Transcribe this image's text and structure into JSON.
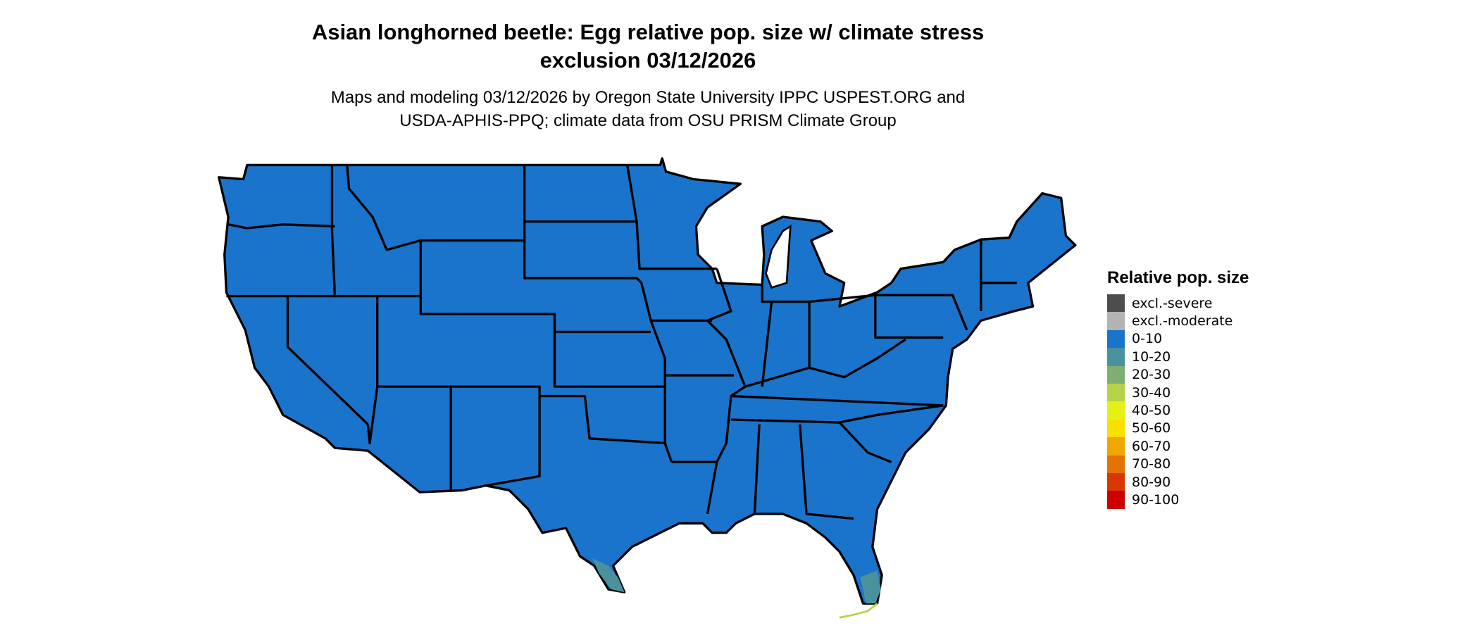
{
  "title": {
    "line1": "Asian longhorned beetle: Egg relative pop. size w/ climate stress",
    "line2": "exclusion 03/12/2026"
  },
  "subtitle": {
    "line1": "Maps and modeling 03/12/2026 by Oregon State University IPPC USPEST.ORG and",
    "line2": "USDA-APHIS-PPQ; climate data from OSU PRISM Climate Group"
  },
  "map": {
    "region": "Contiguous United States",
    "dominant_class": "0-10",
    "colors": {
      "land": "#1a74cc",
      "border": "#000000",
      "water": "#ffffff"
    },
    "highlighted_regions": [
      {
        "area": "South Texas tip",
        "class": "10-20"
      },
      {
        "area": "South Florida tip",
        "class": "10-20"
      },
      {
        "area": "Florida Keys",
        "class": "30-40"
      }
    ]
  },
  "legend": {
    "title": "Relative pop. size",
    "items": [
      {
        "label": "excl.-severe",
        "color": "#4d4d4d"
      },
      {
        "label": "excl.-moderate",
        "color": "#b3b3b3"
      },
      {
        "label": "0-10",
        "color": "#1a74cc"
      },
      {
        "label": "10-20",
        "color": "#4a919e"
      },
      {
        "label": "20-30",
        "color": "#7fae73"
      },
      {
        "label": "30-40",
        "color": "#b3d245"
      },
      {
        "label": "40-50",
        "color": "#e6f014"
      },
      {
        "label": "50-60",
        "color": "#f9e000"
      },
      {
        "label": "60-70",
        "color": "#f0a800"
      },
      {
        "label": "70-80",
        "color": "#e57200"
      },
      {
        "label": "80-90",
        "color": "#d93600"
      },
      {
        "label": "90-100",
        "color": "#cc0000"
      }
    ]
  }
}
